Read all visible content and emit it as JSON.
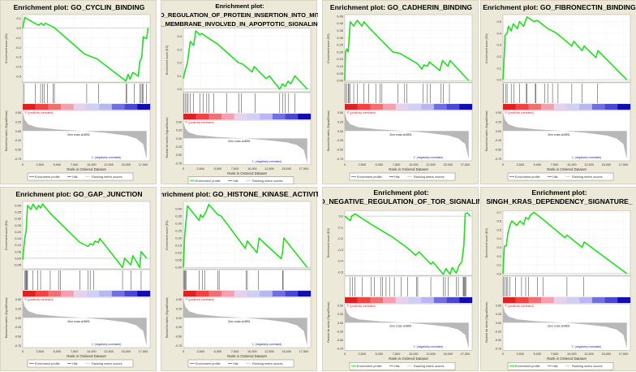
{
  "shared": {
    "ylabel_es": "Enrichment score (ES)",
    "ylabel_metric": "Ranked list metric (Signal2Noise)",
    "xlabel": "Rank in Ordered Dataset",
    "xticks": [
      "0",
      "2,500",
      "5,000",
      "7,500",
      "10,000",
      "12,500",
      "15,000",
      "17,500"
    ],
    "metric_ticks": [
      "0.50",
      "0.25",
      "0.00",
      "-0.25",
      "-0.50",
      "-0.75"
    ],
    "pos_label": "'P' (positively correlated)",
    "neg_label": "'L' (negatively correlated)",
    "zero_cross": "Zero cross at 8891",
    "legend": [
      "Enrichment profile",
      "Hits",
      "Ranking metric scores"
    ],
    "colors": {
      "es_line": "#22dd22",
      "hits": "#333333",
      "metric": "#b8b8b8",
      "pos": "#dd2222",
      "neg": "#2222aa"
    }
  },
  "chart_data": [
    {
      "type": "line",
      "title": [
        "Enrichment plot: GO_CYCLIN_BINDING"
      ],
      "ylim": [
        -0.56,
        0.14
      ],
      "yticks": [
        "0.1",
        "0.0",
        "-0.1",
        "-0.2",
        "-0.3",
        "-0.4",
        "-0.5"
      ],
      "es": [
        [
          0,
          0
        ],
        [
          300,
          0.11
        ],
        [
          1500,
          0.06
        ],
        [
          2300,
          0.03
        ],
        [
          2700,
          0.05
        ],
        [
          3000,
          0.03
        ],
        [
          3300,
          0.05
        ],
        [
          4500,
          0.01
        ],
        [
          9000,
          -0.27
        ],
        [
          10800,
          -0.32
        ],
        [
          15000,
          -0.55
        ],
        [
          15300,
          -0.48
        ],
        [
          15600,
          -0.53
        ],
        [
          16000,
          -0.46
        ],
        [
          16800,
          -0.5
        ],
        [
          17000,
          -0.35
        ],
        [
          17300,
          -0.3
        ],
        [
          17500,
          -0.09
        ],
        [
          18000,
          -0.11
        ],
        [
          18200,
          0
        ]
      ],
      "hits": [
        200,
        1800,
        2600,
        2900,
        3100,
        3600,
        4400,
        4600,
        9300,
        11000,
        15000,
        15100,
        16200,
        17000,
        17200,
        17400,
        17500,
        18000
      ]
    },
    {
      "type": "line",
      "title": [
        "Enrichment plot:",
        "GO_REGULATION_OF_PROTEIN_INSERTION_INTO_MITO",
        "AL_MEMBRANE_INVOLVED_IN_APOPTOTIC_SIGNALING_"
      ],
      "ylim": [
        -0.02,
        0.46
      ],
      "yticks": [
        "0.4",
        "0.3",
        "0.2",
        "0.1",
        "0.0"
      ],
      "es": [
        [
          0,
          0.08
        ],
        [
          300,
          0.15
        ],
        [
          600,
          0.2
        ],
        [
          800,
          0.28
        ],
        [
          1000,
          0.36
        ],
        [
          1500,
          0.33
        ],
        [
          1800,
          0.44
        ],
        [
          2400,
          0.41
        ],
        [
          2700,
          0.42
        ],
        [
          3500,
          0.39
        ],
        [
          5000,
          0.34
        ],
        [
          8000,
          0.2
        ],
        [
          8600,
          0.19
        ],
        [
          10000,
          0.13
        ],
        [
          10300,
          0.17
        ],
        [
          12000,
          0.08
        ],
        [
          12500,
          0.1
        ],
        [
          14000,
          0.0
        ],
        [
          14400,
          0.04
        ],
        [
          14800,
          0.02
        ],
        [
          15200,
          0.06
        ],
        [
          15600,
          0.04
        ],
        [
          16200,
          0.1
        ],
        [
          18000,
          0
        ]
      ],
      "hits": [
        100,
        300,
        500,
        700,
        1000,
        1500,
        2400,
        2900,
        3400,
        3700,
        4400,
        6300,
        8100,
        8400,
        10400,
        14000,
        14400,
        14800,
        15300,
        16200
      ]
    },
    {
      "type": "line",
      "title": [
        "Enrichment plot: GO_CADHERIN_BINDING"
      ],
      "ylim": [
        -0.01,
        0.46
      ],
      "yticks": [
        "0.45",
        "0.40",
        "0.35",
        "0.30",
        "0.25",
        "0.20",
        "0.15",
        "0.10",
        "0.05",
        "0.00"
      ],
      "es": [
        [
          0,
          0
        ],
        [
          100,
          0.2
        ],
        [
          300,
          0.22
        ],
        [
          500,
          0.2
        ],
        [
          600,
          0.27
        ],
        [
          800,
          0.41
        ],
        [
          1300,
          0.38
        ],
        [
          1800,
          0.42
        ],
        [
          2500,
          0.38
        ],
        [
          2800,
          0.41
        ],
        [
          3500,
          0.37
        ],
        [
          7000,
          0.2
        ],
        [
          8000,
          0.19
        ],
        [
          10500,
          0.12
        ],
        [
          11200,
          0.08
        ],
        [
          11500,
          0.11
        ],
        [
          12000,
          0.1
        ],
        [
          12300,
          0.13
        ],
        [
          13800,
          0.07
        ],
        [
          14200,
          0.14
        ],
        [
          15000,
          0.1
        ],
        [
          15300,
          0.14
        ],
        [
          18000,
          0
        ]
      ],
      "hits": [
        100,
        300,
        500,
        600,
        800,
        1300,
        1800,
        2800,
        3500,
        4500,
        5100,
        5400,
        7700,
        8700,
        9000,
        11400,
        12000,
        12400,
        14000,
        14300,
        15200
      ]
    },
    {
      "type": "line",
      "title": [
        "Enrichment plot: GO_FIBRONECTIN_BINDING"
      ],
      "ylim": [
        -0.02,
        0.56
      ],
      "yticks": [
        "0.5",
        "0.4",
        "0.3",
        "0.2",
        "0.1",
        "0.0"
      ],
      "es": [
        [
          0,
          0
        ],
        [
          200,
          0.22
        ],
        [
          300,
          0.38
        ],
        [
          600,
          0.4
        ],
        [
          800,
          0.46
        ],
        [
          1200,
          0.42
        ],
        [
          1500,
          0.48
        ],
        [
          2100,
          0.44
        ],
        [
          2400,
          0.5
        ],
        [
          3000,
          0.46
        ],
        [
          3500,
          0.54
        ],
        [
          4500,
          0.5
        ],
        [
          5000,
          0.51
        ],
        [
          6500,
          0.44
        ],
        [
          7500,
          0.41
        ],
        [
          8000,
          0.39
        ],
        [
          10000,
          0.29
        ],
        [
          10300,
          0.33
        ],
        [
          11500,
          0.25
        ],
        [
          11800,
          0.29
        ],
        [
          13500,
          0.19
        ],
        [
          13800,
          0.25
        ],
        [
          18000,
          0
        ]
      ],
      "hits": [
        100,
        400,
        600,
        1200,
        1600,
        2400,
        3400,
        3500,
        4700,
        4800,
        6100,
        6500,
        7200,
        8000,
        10000,
        11500,
        13700
      ]
    },
    {
      "type": "line",
      "title": [
        "Enrichment plot: GO_GAP_JUNCTION"
      ],
      "ylim": [
        -0.08,
        0.43
      ],
      "yticks": [
        "0.40",
        "0.35",
        "0.30",
        "0.25",
        "0.20",
        "0.15",
        "0.10",
        "0.05",
        "0.00",
        "-0.05"
      ],
      "es": [
        [
          0,
          -0.01
        ],
        [
          300,
          0.15
        ],
        [
          500,
          0.21
        ],
        [
          700,
          0.4
        ],
        [
          1200,
          0.37
        ],
        [
          1500,
          0.41
        ],
        [
          2000,
          0.37
        ],
        [
          2300,
          0.4
        ],
        [
          2600,
          0.38
        ],
        [
          2900,
          0.41
        ],
        [
          4000,
          0.34
        ],
        [
          8300,
          0.12
        ],
        [
          9500,
          0.09
        ],
        [
          9800,
          0.11
        ],
        [
          10200,
          0.1
        ],
        [
          10500,
          0.13
        ],
        [
          11000,
          0.12
        ],
        [
          11200,
          0.15
        ],
        [
          14500,
          -0.07
        ],
        [
          14800,
          0
        ],
        [
          15700,
          -0.05
        ],
        [
          16000,
          0.02
        ],
        [
          17000,
          -0.07
        ],
        [
          17200,
          0.05
        ],
        [
          18000,
          0
        ]
      ],
      "hits": [
        300,
        400,
        500,
        600,
        700,
        1500,
        2200,
        2600,
        4000,
        5200,
        5500,
        8300,
        9500,
        9800,
        10300,
        14500,
        15700,
        17200
      ]
    },
    {
      "type": "line",
      "title": [
        "Enrichment plot: GO_HISTONE_KINASE_ACTIVITY"
      ],
      "ylim": [
        -0.01,
        0.45
      ],
      "yticks": [
        "0.40",
        "0.35",
        "0.30",
        "0.25",
        "0.20",
        "0.15",
        "0.10",
        "0.05",
        "0.00"
      ],
      "es": [
        [
          0,
          0
        ],
        [
          200,
          0.22
        ],
        [
          400,
          0.32
        ],
        [
          600,
          0.42
        ],
        [
          2300,
          0.32
        ],
        [
          2500,
          0.36
        ],
        [
          2800,
          0.34
        ],
        [
          3300,
          0.38
        ],
        [
          3700,
          0.43
        ],
        [
          5000,
          0.36
        ],
        [
          5500,
          0.35
        ],
        [
          9000,
          0.13
        ],
        [
          9300,
          0.18
        ],
        [
          10700,
          0.1
        ],
        [
          11000,
          0.2
        ],
        [
          14200,
          0.06
        ],
        [
          14400,
          0.1
        ],
        [
          14600,
          0.2
        ],
        [
          18000,
          0
        ]
      ],
      "hits": [
        100,
        200,
        300,
        400,
        2300,
        2800,
        3100,
        5000,
        5200,
        9100,
        9300,
        10900,
        14400,
        14500
      ]
    },
    {
      "type": "line",
      "title": [
        "Enrichment plot:",
        "GO_NEGATIVE_REGULATION_OF_TOR_SIGNALING"
      ],
      "ylim": [
        -0.53,
        0.05
      ],
      "yticks": [
        "0.0",
        "-0.1",
        "-0.2",
        "-0.3",
        "-0.4",
        "-0.5"
      ],
      "es": [
        [
          0,
          0
        ],
        [
          800,
          -0.04
        ],
        [
          1000,
          0
        ],
        [
          1500,
          0.02
        ],
        [
          2500,
          -0.02
        ],
        [
          4000,
          -0.08
        ],
        [
          7000,
          -0.19
        ],
        [
          9000,
          -0.28
        ],
        [
          10300,
          -0.35
        ],
        [
          10800,
          -0.32
        ],
        [
          12500,
          -0.43
        ],
        [
          12800,
          -0.41
        ],
        [
          14300,
          -0.52
        ],
        [
          14700,
          -0.47
        ],
        [
          15300,
          -0.52
        ],
        [
          15600,
          -0.46
        ],
        [
          16200,
          -0.51
        ],
        [
          16600,
          -0.44
        ],
        [
          17000,
          -0.41
        ],
        [
          17300,
          -0.26
        ],
        [
          17500,
          0.02
        ],
        [
          17800,
          0.03
        ],
        [
          18200,
          0
        ]
      ],
      "hits": [
        800,
        1100,
        1500,
        2500,
        3800,
        4300,
        5200,
        5500,
        6000,
        6500,
        7200,
        8200,
        9100,
        10400,
        10600,
        12500,
        14300,
        14600,
        15000,
        16200,
        16500,
        17200,
        17300,
        17400,
        17500,
        17600
      ]
    },
    {
      "type": "line",
      "title": [
        "Enrichment plot:",
        "SINGH_KRAS_DEPENDENCY_SIGNATURE_"
      ],
      "ylim": [
        -0.02,
        0.72
      ],
      "yticks": [
        "0.7",
        "0.6",
        "0.5",
        "0.4",
        "0.3",
        "0.2",
        "0.1",
        "0.0"
      ],
      "es": [
        [
          0,
          0
        ],
        [
          200,
          0.31
        ],
        [
          500,
          0.32
        ],
        [
          700,
          0.45
        ],
        [
          900,
          0.52
        ],
        [
          1100,
          0.57
        ],
        [
          1300,
          0.6
        ],
        [
          2000,
          0.55
        ],
        [
          2500,
          0.6
        ],
        [
          3000,
          0.56
        ],
        [
          3300,
          0.64
        ],
        [
          3700,
          0.62
        ],
        [
          4000,
          0.67
        ],
        [
          4500,
          0.7
        ],
        [
          5800,
          0.62
        ],
        [
          9000,
          0.41
        ],
        [
          9300,
          0.44
        ],
        [
          11500,
          0.3
        ],
        [
          11800,
          0.36
        ],
        [
          18000,
          0
        ]
      ],
      "hits": [
        100,
        300,
        500,
        700,
        1000,
        1800,
        2700,
        3300,
        3700,
        5000,
        5800,
        9300,
        11700
      ]
    }
  ]
}
